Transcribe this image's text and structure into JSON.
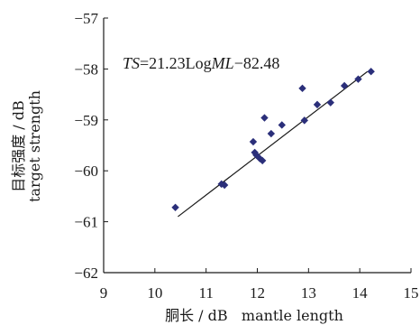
{
  "chart_data": {
    "type": "scatter",
    "xlabel": "胴长 / dB   mantle length",
    "ylabel_line1": "目标强度 / dB",
    "ylabel_line2": "target strength",
    "equation": {
      "ts": "TS",
      "eq1": "=21.23Log",
      "ml": "ML",
      "eq2": "−82.48"
    },
    "xlim": [
      9,
      15
    ],
    "ylim": [
      -62,
      -57
    ],
    "x_ticks": [
      9,
      10,
      11,
      12,
      13,
      14,
      15
    ],
    "y_ticks": [
      -57,
      -58,
      -59,
      -60,
      -61,
      -62
    ],
    "x_tick_labels": [
      "9",
      "10",
      "11",
      "12",
      "13",
      "14",
      "15"
    ],
    "y_tick_labels": [
      "−57",
      "−58",
      "−59",
      "−60",
      "−61",
      "−62"
    ],
    "grid": false,
    "marker": "diamond",
    "marker_color": "#2b2f7a",
    "line_color": "#1a1a1a",
    "points": [
      {
        "x": 10.4,
        "y": -60.72
      },
      {
        "x": 11.3,
        "y": -60.26
      },
      {
        "x": 11.36,
        "y": -60.28
      },
      {
        "x": 11.92,
        "y": -59.43
      },
      {
        "x": 11.95,
        "y": -59.64
      },
      {
        "x": 11.98,
        "y": -59.69
      },
      {
        "x": 12.05,
        "y": -59.76
      },
      {
        "x": 12.1,
        "y": -59.8
      },
      {
        "x": 12.14,
        "y": -58.96
      },
      {
        "x": 12.27,
        "y": -59.27
      },
      {
        "x": 12.48,
        "y": -59.1
      },
      {
        "x": 12.88,
        "y": -58.38
      },
      {
        "x": 12.92,
        "y": -59.01
      },
      {
        "x": 13.17,
        "y": -58.7
      },
      {
        "x": 13.43,
        "y": -58.66
      },
      {
        "x": 13.7,
        "y": -58.33
      },
      {
        "x": 13.97,
        "y": -58.2
      },
      {
        "x": 14.22,
        "y": -58.05
      }
    ],
    "fit_line": {
      "x": [
        10.45,
        14.15
      ],
      "y": [
        -60.9,
        -58.05
      ]
    }
  }
}
